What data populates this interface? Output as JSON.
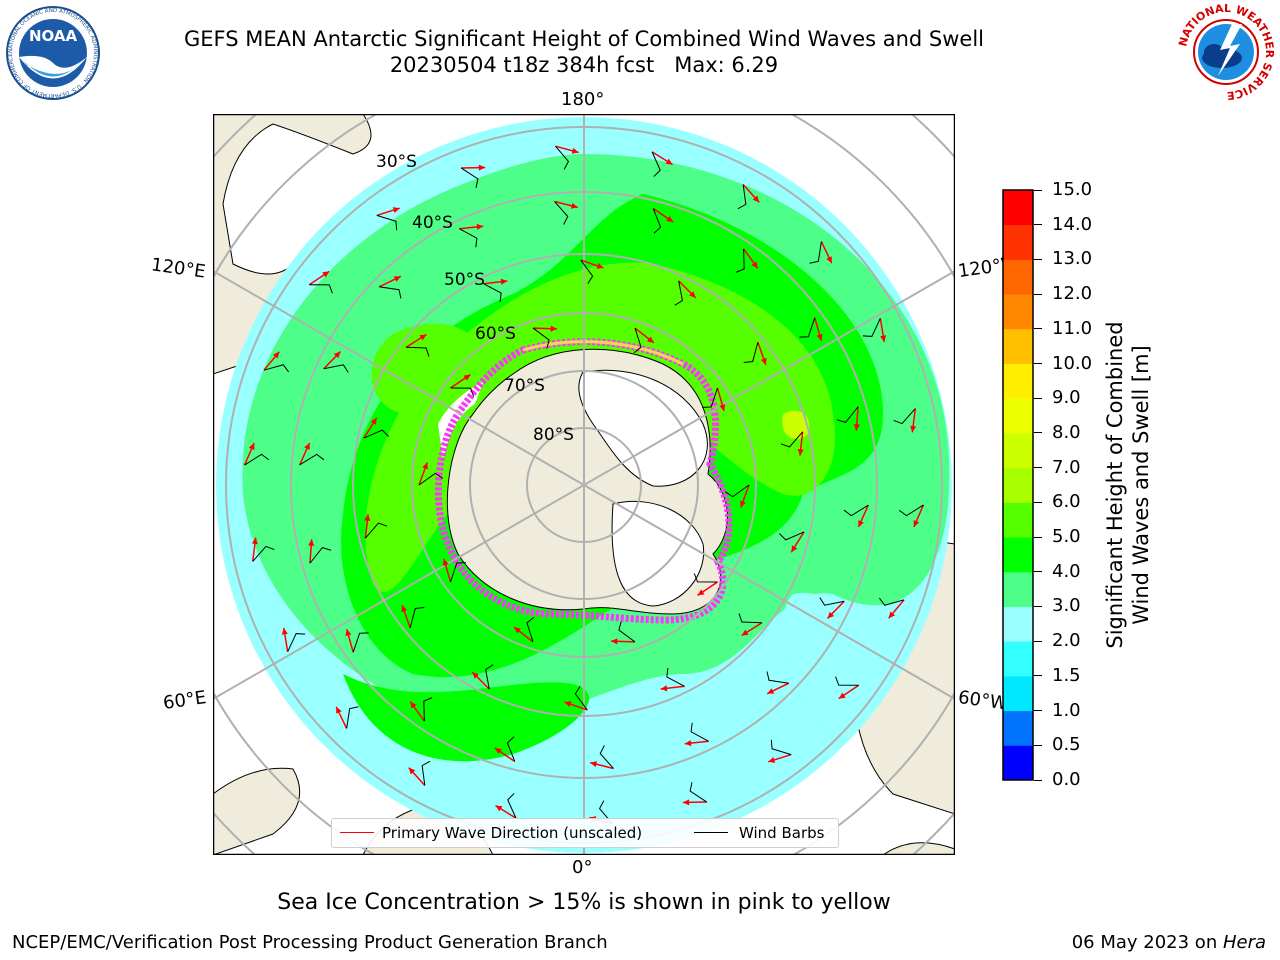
{
  "header": {
    "title_line1": "GEFS MEAN Antarctic Significant Height of Combined Wind Waves and Swell",
    "title_line2": "20230504 t18z 384h fcst   Max: 6.29"
  },
  "logos": {
    "left": {
      "icon": "noaa-logo-icon",
      "text": "NOAA",
      "ring_text": "NATIONAL OCEANIC AND ATMOSPHERIC ADMINISTRATION · U.S. DEPARTMENT OF COMMERCE"
    },
    "right": {
      "icon": "national-weather-service-logo-icon",
      "ring_text": "NATIONAL WEATHER SERVICE"
    }
  },
  "map": {
    "projection": "south-polar-stereographic",
    "longitude_labels": {
      "top": "180°",
      "bottom": "0°",
      "left_upper": "120°E",
      "left_lower": "60°E",
      "right_upper": "120°W",
      "right_lower": "60°W"
    },
    "latitude_labels": [
      "30°S",
      "40°S",
      "50°S",
      "60°S",
      "70°S",
      "80°S"
    ],
    "colors": {
      "land": "#efecdc",
      "ice_sheet": "#ffffff",
      "sea_ice_edge": "#ff33ff",
      "arrows": "#ff0000",
      "barbs": "#000000",
      "grid": "#b0b0b0"
    }
  },
  "legend": {
    "items": [
      {
        "label": "Primary Wave Direction (unscaled)",
        "color": "#ff0000"
      },
      {
        "label": "Wind Barbs",
        "color": "#000000"
      }
    ]
  },
  "colorbar": {
    "label_line1": "Significant Height of Combined",
    "label_line2": "Wind Waves and Swell [m]",
    "ticks": [
      "0.0",
      "0.5",
      "1.0",
      "1.5",
      "2.0",
      "3.0",
      "4.0",
      "5.0",
      "6.0",
      "7.0",
      "8.0",
      "9.0",
      "10.0",
      "11.0",
      "12.0",
      "13.0",
      "14.0",
      "15.0"
    ],
    "colors": [
      "#0000ff",
      "#0073ff",
      "#00e8ff",
      "#33ffff",
      "#99ffff",
      "#4dff88",
      "#00ff00",
      "#55ff00",
      "#a8ff00",
      "#ccff00",
      "#eeff00",
      "#ffee00",
      "#ffc000",
      "#ff8800",
      "#ff6600",
      "#ff3300",
      "#ff0000"
    ]
  },
  "caption": "Sea Ice Concentration > 15% is shown in pink to yellow",
  "footer": {
    "left": "NCEP/EMC/Verification Post Processing Product Generation Branch",
    "right_date": "06 May 2023 on ",
    "right_host": "Hera"
  }
}
